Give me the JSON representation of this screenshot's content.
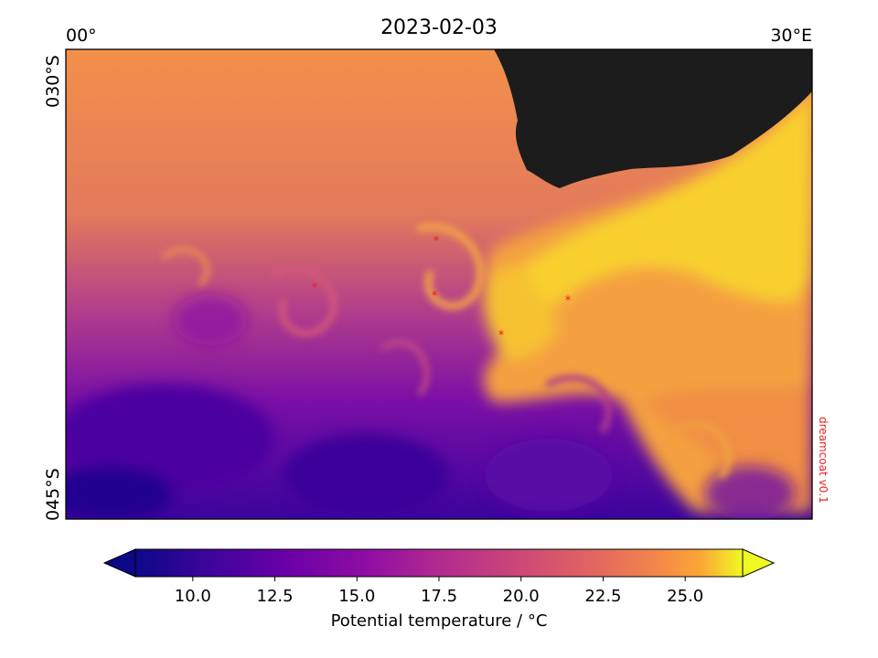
{
  "title": "2023-02-03",
  "axes": {
    "lon_left": "00°",
    "lon_right": "30°E",
    "lat_top": "030°S",
    "lat_bottom": "045°S"
  },
  "credit": "dreamcoat v0.1",
  "colorbar": {
    "label": "Potential temperature / °C",
    "ticks": [
      "10.0",
      "12.5",
      "15.0",
      "17.5",
      "20.0",
      "22.5",
      "25.0"
    ],
    "range": [
      8.25,
      26.75
    ],
    "extend": "both",
    "colormap": "plasma"
  },
  "colors": {
    "land": "#1c1c1c",
    "marker": "#e8201c"
  }
}
